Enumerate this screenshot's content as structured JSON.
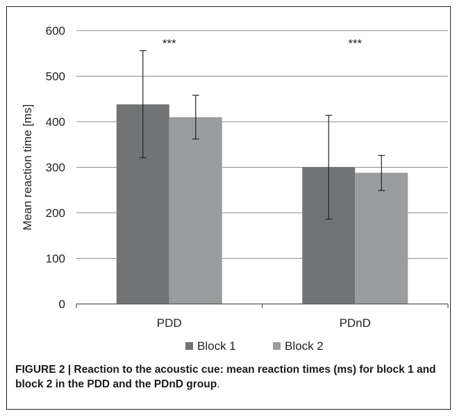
{
  "chart_data": {
    "type": "bar",
    "categories": [
      "PDD",
      "PDnD"
    ],
    "series": [
      {
        "name": "Block 1",
        "values": [
          438,
          300
        ],
        "err_low": [
          321,
          186
        ],
        "err_high": [
          556,
          414
        ]
      },
      {
        "name": "Block 2",
        "values": [
          410,
          288
        ],
        "err_low": [
          362,
          249
        ],
        "err_high": [
          458,
          326
        ]
      }
    ],
    "ylabel": "Mean reaction time [ms]",
    "xlabel": "",
    "ylim": [
      0,
      600
    ],
    "yticks": [
      0,
      100,
      200,
      300,
      400,
      500,
      600
    ],
    "significance": [
      "***",
      "***"
    ],
    "grid": true,
    "legend": "bottom",
    "colors": {
      "Block 1": "#717374",
      "Block 2": "#9a9c9d",
      "grid": "#8a8a8a",
      "axis": "#555555"
    }
  },
  "caption": {
    "main": "FIGURE 2 | Reaction to the acoustic cue: mean reaction times (ms) for block 1 and block 2 in the PDD and the PDnD group",
    "tail": "."
  }
}
